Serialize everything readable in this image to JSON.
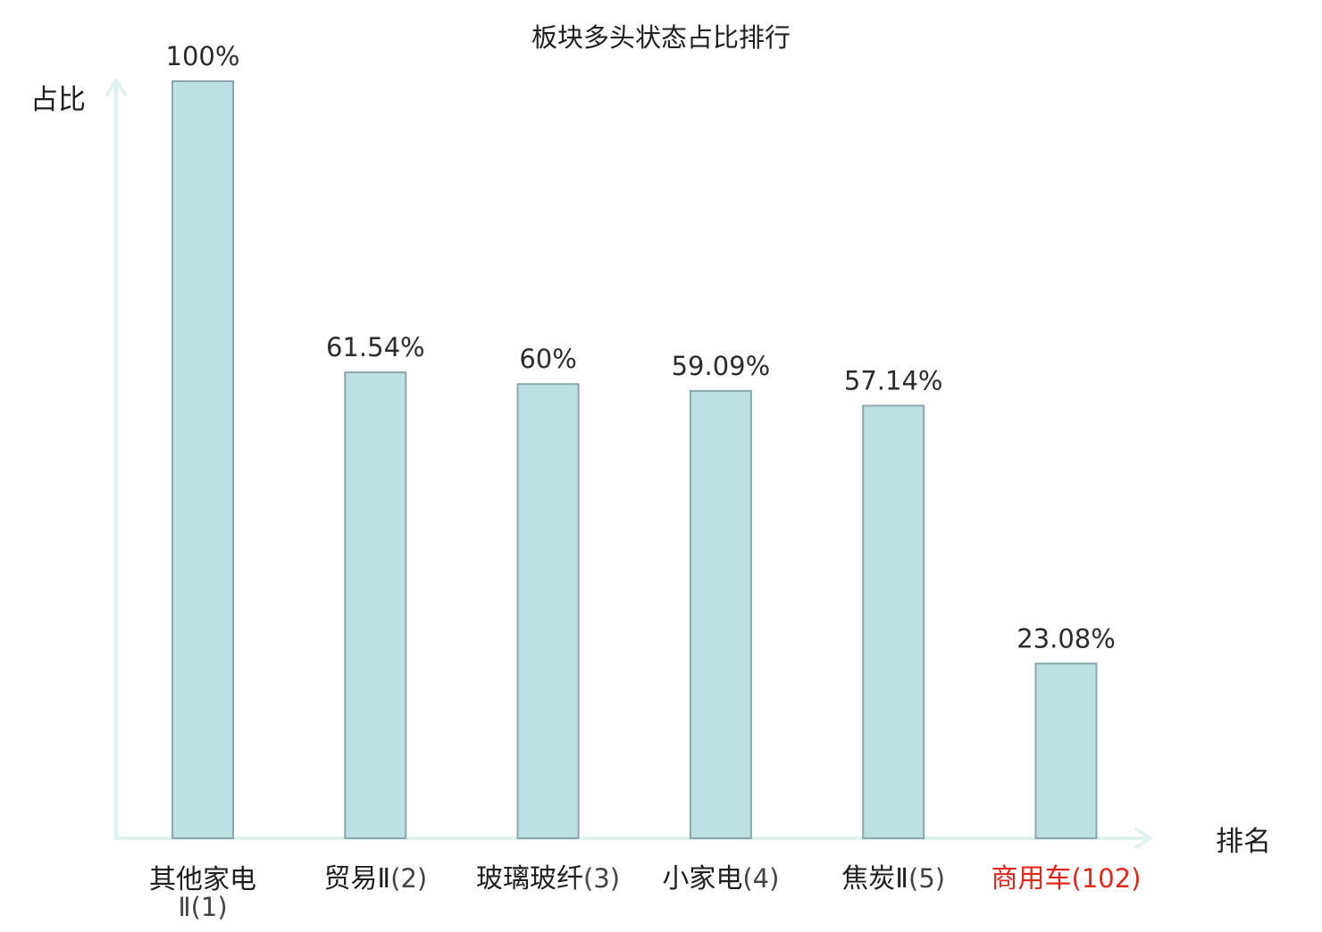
{
  "chart_data": {
    "type": "bar",
    "title": "板块多头状态占比排行",
    "ylabel": "占比",
    "xlabel": "排名",
    "ylim": [
      0,
      100
    ],
    "grid": false,
    "categories": [
      {
        "name_lines": [
          "其他家电"
        ],
        "rank_line": "Ⅱ(1)",
        "highlight": false
      },
      {
        "name_lines": [
          "贸易Ⅱ"
        ],
        "rank_line": "(2)",
        "highlight": false
      },
      {
        "name_lines": [
          "玻璃玻纤"
        ],
        "rank_line": "(3)",
        "highlight": false
      },
      {
        "name_lines": [
          "小家电"
        ],
        "rank_line": "(4)",
        "highlight": false
      },
      {
        "name_lines": [
          "焦炭Ⅱ"
        ],
        "rank_line": "(5)",
        "highlight": false
      },
      {
        "name_lines": [
          "商用车"
        ],
        "rank_line": "(102)",
        "highlight": true
      }
    ],
    "values": [
      100,
      61.54,
      60,
      59.09,
      57.14,
      23.08
    ],
    "value_labels": [
      "100%",
      "61.54%",
      "60%",
      "59.09%",
      "57.14%",
      "23.08%"
    ]
  },
  "colors": {
    "bar_fill": "#bde0e3",
    "bar_stroke": "#8aa7ab",
    "axis": "#dff2ef",
    "text": "#2b2b2b",
    "highlight": "#e3261b"
  }
}
